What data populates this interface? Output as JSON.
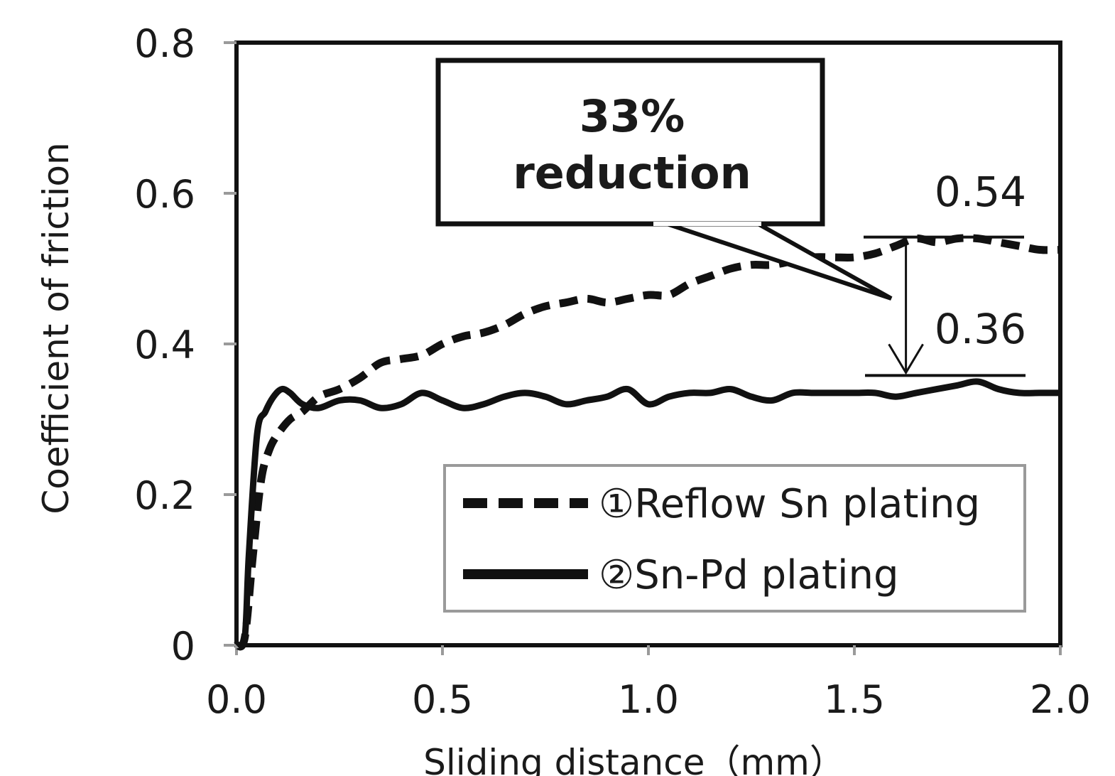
{
  "chart_data": {
    "type": "line",
    "xlabel": "Sliding distance（mm）",
    "ylabel": "Coefficient of friction",
    "xlim": [
      0,
      2.0
    ],
    "ylim": [
      0,
      0.8
    ],
    "x_ticks": [
      "0.0",
      "0.5",
      "1.0",
      "1.5",
      "2.0"
    ],
    "y_ticks": [
      "0",
      "0.2",
      "0.4",
      "0.6",
      "0.8"
    ],
    "grid": false,
    "legend_position": "bottom-right",
    "series": [
      {
        "name": "①Reflow Sn plating",
        "style": "dashed",
        "x": [
          0.0,
          0.02,
          0.04,
          0.06,
          0.08,
          0.1,
          0.13,
          0.16,
          0.2,
          0.25,
          0.3,
          0.35,
          0.4,
          0.45,
          0.5,
          0.55,
          0.6,
          0.65,
          0.7,
          0.75,
          0.8,
          0.85,
          0.9,
          0.95,
          1.0,
          1.05,
          1.1,
          1.15,
          1.2,
          1.25,
          1.3,
          1.35,
          1.4,
          1.45,
          1.5,
          1.55,
          1.6,
          1.65,
          1.7,
          1.75,
          1.8,
          1.85,
          1.9,
          1.95,
          2.0
        ],
        "y": [
          0.0,
          0.01,
          0.12,
          0.22,
          0.26,
          0.28,
          0.3,
          0.31,
          0.33,
          0.34,
          0.355,
          0.375,
          0.38,
          0.385,
          0.4,
          0.41,
          0.415,
          0.425,
          0.44,
          0.45,
          0.455,
          0.46,
          0.455,
          0.46,
          0.465,
          0.465,
          0.48,
          0.49,
          0.5,
          0.505,
          0.505,
          0.51,
          0.515,
          0.515,
          0.515,
          0.52,
          0.53,
          0.54,
          0.535,
          0.54,
          0.54,
          0.535,
          0.53,
          0.525,
          0.525
        ]
      },
      {
        "name": "②Sn-Pd plating",
        "style": "solid",
        "x": [
          0.0,
          0.02,
          0.03,
          0.05,
          0.07,
          0.09,
          0.11,
          0.13,
          0.16,
          0.2,
          0.25,
          0.3,
          0.35,
          0.4,
          0.45,
          0.5,
          0.55,
          0.6,
          0.65,
          0.7,
          0.75,
          0.8,
          0.85,
          0.9,
          0.95,
          1.0,
          1.05,
          1.1,
          1.15,
          1.2,
          1.25,
          1.3,
          1.35,
          1.4,
          1.45,
          1.5,
          1.55,
          1.6,
          1.65,
          1.7,
          1.75,
          1.8,
          1.85,
          1.9,
          1.95,
          2.0
        ],
        "y": [
          0.0,
          0.01,
          0.12,
          0.28,
          0.31,
          0.33,
          0.34,
          0.335,
          0.32,
          0.315,
          0.325,
          0.325,
          0.315,
          0.32,
          0.335,
          0.325,
          0.315,
          0.32,
          0.33,
          0.335,
          0.33,
          0.32,
          0.325,
          0.33,
          0.34,
          0.32,
          0.33,
          0.335,
          0.335,
          0.34,
          0.33,
          0.325,
          0.335,
          0.335,
          0.335,
          0.335,
          0.335,
          0.33,
          0.335,
          0.34,
          0.345,
          0.35,
          0.34,
          0.335,
          0.335,
          0.335
        ]
      }
    ],
    "annotations": {
      "callout_line1": "33%",
      "callout_line2": "reduction",
      "upper_value": "0.54",
      "lower_value": "0.36",
      "upper_level": 0.54,
      "lower_level": 0.36,
      "arrow_x": 1.62
    }
  }
}
